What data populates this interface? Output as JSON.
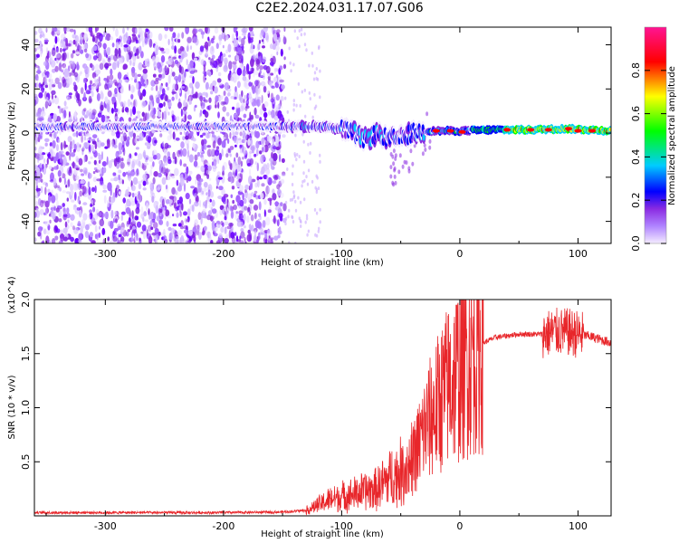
{
  "title": "C2E2.2024.031.17.07.G06",
  "chart_data": [
    {
      "type": "heatmap",
      "xlabel": "Height of straight line (km)",
      "ylabel": "Frequency (Hz)",
      "xlim": [
        -360,
        128
      ],
      "ylim": [
        -50,
        48
      ],
      "xticks": [
        -300,
        -200,
        -100,
        0,
        100
      ],
      "yticks": [
        -40,
        -20,
        0,
        20,
        40
      ],
      "xtick_labels": [
        "-300",
        "-200",
        "-100",
        "0",
        "100"
      ],
      "ytick_labels": [
        "-40",
        "-20",
        "0",
        "20",
        "40"
      ],
      "colorbar": {
        "label": "Normalized spectral amplitude",
        "range": [
          0,
          1
        ],
        "ticks": [
          "0.0",
          "0.2",
          "0.4",
          "0.6",
          "0.8"
        ],
        "colors": [
          "#f4ecff",
          "#8a2be2",
          "#0000ff",
          "#00ccff",
          "#00ff00",
          "#ffff00",
          "#ff0000",
          "#ff1493"
        ]
      },
      "ridge": [
        {
          "x": -360,
          "y": 3
        },
        {
          "x": -300,
          "y": 3
        },
        {
          "x": -250,
          "y": 3
        },
        {
          "x": -200,
          "y": 3
        },
        {
          "x": -150,
          "y": 3
        },
        {
          "x": -130,
          "y": 3
        },
        {
          "x": -115,
          "y": 3
        },
        {
          "x": -100,
          "y": 2
        },
        {
          "x": -90,
          "y": 0
        },
        {
          "x": -80,
          "y": -3
        },
        {
          "x": -70,
          "y": 0
        },
        {
          "x": -60,
          "y": -3
        },
        {
          "x": -50,
          "y": -2
        },
        {
          "x": -40,
          "y": 0
        },
        {
          "x": -30,
          "y": 1
        },
        {
          "x": -20,
          "y": 1
        },
        {
          "x": 0,
          "y": 1
        },
        {
          "x": 30,
          "y": 1.5
        },
        {
          "x": 60,
          "y": 1.5
        },
        {
          "x": 90,
          "y": 2
        },
        {
          "x": 128,
          "y": 1
        }
      ]
    },
    {
      "type": "line",
      "series_name": "SNR",
      "color": "#e8262a",
      "xlabel": "Height of straight line (km)",
      "ylabel": "SNR (10 * v/v)",
      "y_multiplier": "(x10^4)",
      "xlim": [
        -360,
        128
      ],
      "ylim": [
        0,
        20000
      ],
      "xticks": [
        -300,
        -200,
        -100,
        0,
        100
      ],
      "yticks": [
        5000,
        10000,
        15000,
        20000
      ],
      "xtick_labels": [
        "-300",
        "-200",
        "-100",
        "0",
        "100"
      ],
      "ytick_labels": [
        "0.5",
        "1.0",
        "1.5",
        "2.0"
      ],
      "envelope": [
        {
          "x": -360,
          "y": 300
        },
        {
          "x": -300,
          "y": 300
        },
        {
          "x": -200,
          "y": 300
        },
        {
          "x": -150,
          "y": 350
        },
        {
          "x": -130,
          "y": 500
        },
        {
          "x": -120,
          "y": 1000
        },
        {
          "x": -110,
          "y": 1500
        },
        {
          "x": -100,
          "y": 1800
        },
        {
          "x": -90,
          "y": 2000
        },
        {
          "x": -80,
          "y": 2300
        },
        {
          "x": -70,
          "y": 2500
        },
        {
          "x": -60,
          "y": 3500
        },
        {
          "x": -50,
          "y": 4000
        },
        {
          "x": -40,
          "y": 5000
        },
        {
          "x": -30,
          "y": 8000
        },
        {
          "x": -20,
          "y": 10000
        },
        {
          "x": -10,
          "y": 12000
        },
        {
          "x": 0,
          "y": 13500
        },
        {
          "x": 10,
          "y": 15000
        },
        {
          "x": 20,
          "y": 16000
        },
        {
          "x": 30,
          "y": 16500
        },
        {
          "x": 50,
          "y": 16800
        },
        {
          "x": 70,
          "y": 16800
        },
        {
          "x": 80,
          "y": 17000
        },
        {
          "x": 90,
          "y": 17000
        },
        {
          "x": 100,
          "y": 16800
        },
        {
          "x": 110,
          "y": 16600
        },
        {
          "x": 128,
          "y": 16000
        }
      ]
    }
  ]
}
